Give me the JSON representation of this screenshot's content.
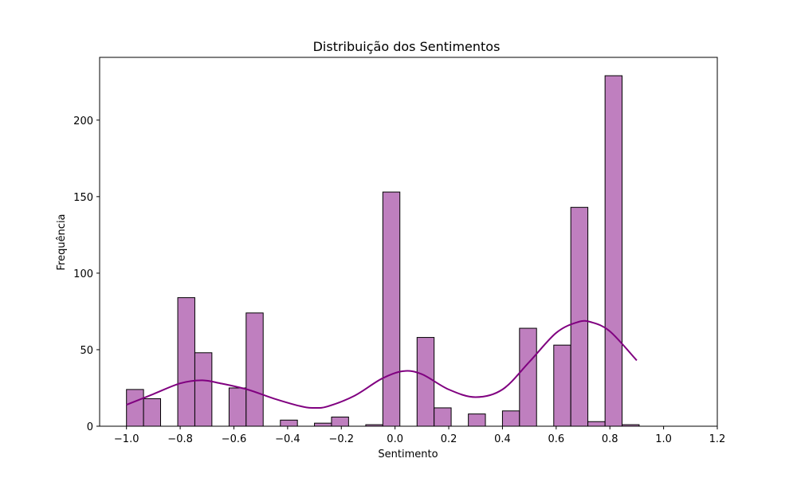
{
  "chart_data": {
    "type": "bar",
    "title": "Distribuição dos Sentimentos",
    "xlabel": "Sentimento",
    "ylabel": "Frequência",
    "xlim": [
      -1.1,
      1.2
    ],
    "ylim": [
      0,
      241
    ],
    "x_ticks": [
      -1.0,
      -0.8,
      -0.6,
      -0.4,
      -0.2,
      0.0,
      0.2,
      0.4,
      0.6,
      0.8,
      1.0,
      1.2
    ],
    "x_tick_labels": [
      "−1.0",
      "−0.8",
      "−0.6",
      "−0.4",
      "−0.2",
      "0.0",
      "0.2",
      "0.4",
      "0.6",
      "0.8",
      "1.0",
      "1.2"
    ],
    "y_ticks": [
      0,
      50,
      100,
      150,
      200
    ],
    "y_tick_labels": [
      "0",
      "50",
      "100",
      "150",
      "200"
    ],
    "grid": false,
    "bar_color": "#bf7fbf",
    "edge_color": "#000000",
    "kde_color": "#800080",
    "bins": [
      {
        "x0": -1.0,
        "x1": -0.9365,
        "count": 24
      },
      {
        "x0": -0.9365,
        "x1": -0.873,
        "count": 18
      },
      {
        "x0": -0.809,
        "x1": -0.7455,
        "count": 84
      },
      {
        "x0": -0.7455,
        "x1": -0.682,
        "count": 48
      },
      {
        "x0": -0.618,
        "x1": -0.5545,
        "count": 25
      },
      {
        "x0": -0.5545,
        "x1": -0.491,
        "count": 74
      },
      {
        "x0": -0.427,
        "x1": -0.3635,
        "count": 4
      },
      {
        "x0": -0.3,
        "x1": -0.2365,
        "count": 2
      },
      {
        "x0": -0.2365,
        "x1": -0.173,
        "count": 6
      },
      {
        "x0": -0.109,
        "x1": -0.0455,
        "count": 1
      },
      {
        "x0": -0.0455,
        "x1": 0.018,
        "count": 153
      },
      {
        "x0": 0.082,
        "x1": 0.1455,
        "count": 58
      },
      {
        "x0": 0.1455,
        "x1": 0.209,
        "count": 12
      },
      {
        "x0": 0.273,
        "x1": 0.3365,
        "count": 8
      },
      {
        "x0": 0.4,
        "x1": 0.4635,
        "count": 10
      },
      {
        "x0": 0.4635,
        "x1": 0.527,
        "count": 64
      },
      {
        "x0": 0.591,
        "x1": 0.6545,
        "count": 53
      },
      {
        "x0": 0.6545,
        "x1": 0.718,
        "count": 143
      },
      {
        "x0": 0.718,
        "x1": 0.782,
        "count": 3
      },
      {
        "x0": 0.782,
        "x1": 0.8455,
        "count": 229
      },
      {
        "x0": 0.8455,
        "x1": 0.909,
        "count": 1
      }
    ],
    "kde": {
      "x": [
        -1.0,
        -0.9,
        -0.8,
        -0.72,
        -0.65,
        -0.55,
        -0.45,
        -0.35,
        -0.3,
        -0.25,
        -0.15,
        -0.05,
        0.03,
        0.1,
        0.2,
        0.3,
        0.4,
        0.5,
        0.6,
        0.68,
        0.73,
        0.8,
        0.9
      ],
      "y": [
        14,
        21,
        28,
        30,
        28,
        24,
        18,
        13,
        12,
        13,
        20,
        31,
        36,
        34,
        24,
        19,
        24,
        42,
        61,
        68,
        68,
        62,
        43
      ]
    }
  }
}
